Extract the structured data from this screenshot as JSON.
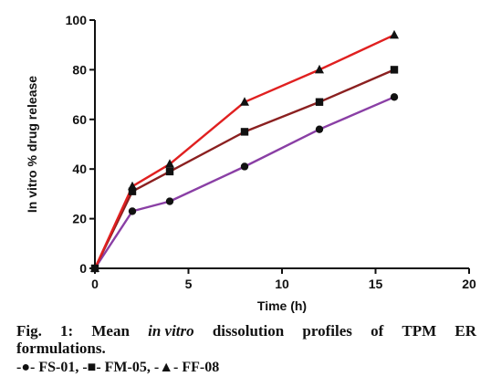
{
  "chart_data": {
    "type": "line",
    "xlabel": "Time (h)",
    "ylabel": "In vitro % drug release",
    "xlim": [
      0,
      20
    ],
    "ylim": [
      0,
      100
    ],
    "xticks": [
      0,
      5,
      10,
      15,
      20
    ],
    "yticks": [
      0,
      20,
      40,
      60,
      80,
      100
    ],
    "grid": false,
    "series": [
      {
        "name": "FS-01",
        "marker": "circle",
        "color": "#8a3fa5",
        "x": [
          0,
          2,
          4,
          8,
          12,
          16
        ],
        "y": [
          0,
          23,
          27,
          41,
          56,
          69
        ]
      },
      {
        "name": "FM-05",
        "marker": "square",
        "color": "#8b2020",
        "x": [
          0,
          2,
          4,
          8,
          12,
          16
        ],
        "y": [
          0,
          31,
          39,
          55,
          67,
          80
        ]
      },
      {
        "name": "FF-08",
        "marker": "triangle",
        "color": "#e02020",
        "x": [
          0,
          2,
          4,
          8,
          12,
          16
        ],
        "y": [
          0,
          33,
          42,
          67,
          80,
          94
        ]
      }
    ]
  },
  "caption": {
    "line1_words": [
      "Fig.",
      "1:",
      "Mean",
      "in vitro",
      "dissolution",
      "profiles",
      "of",
      "TPM",
      "ER"
    ],
    "line2": "formulations.",
    "legend_items": [
      {
        "prefix": "-●-",
        "name": "FS-01"
      },
      {
        "prefix": "-■-",
        "name": "FM-05"
      },
      {
        "prefix": "-▲-",
        "name": "FF-08"
      }
    ]
  }
}
